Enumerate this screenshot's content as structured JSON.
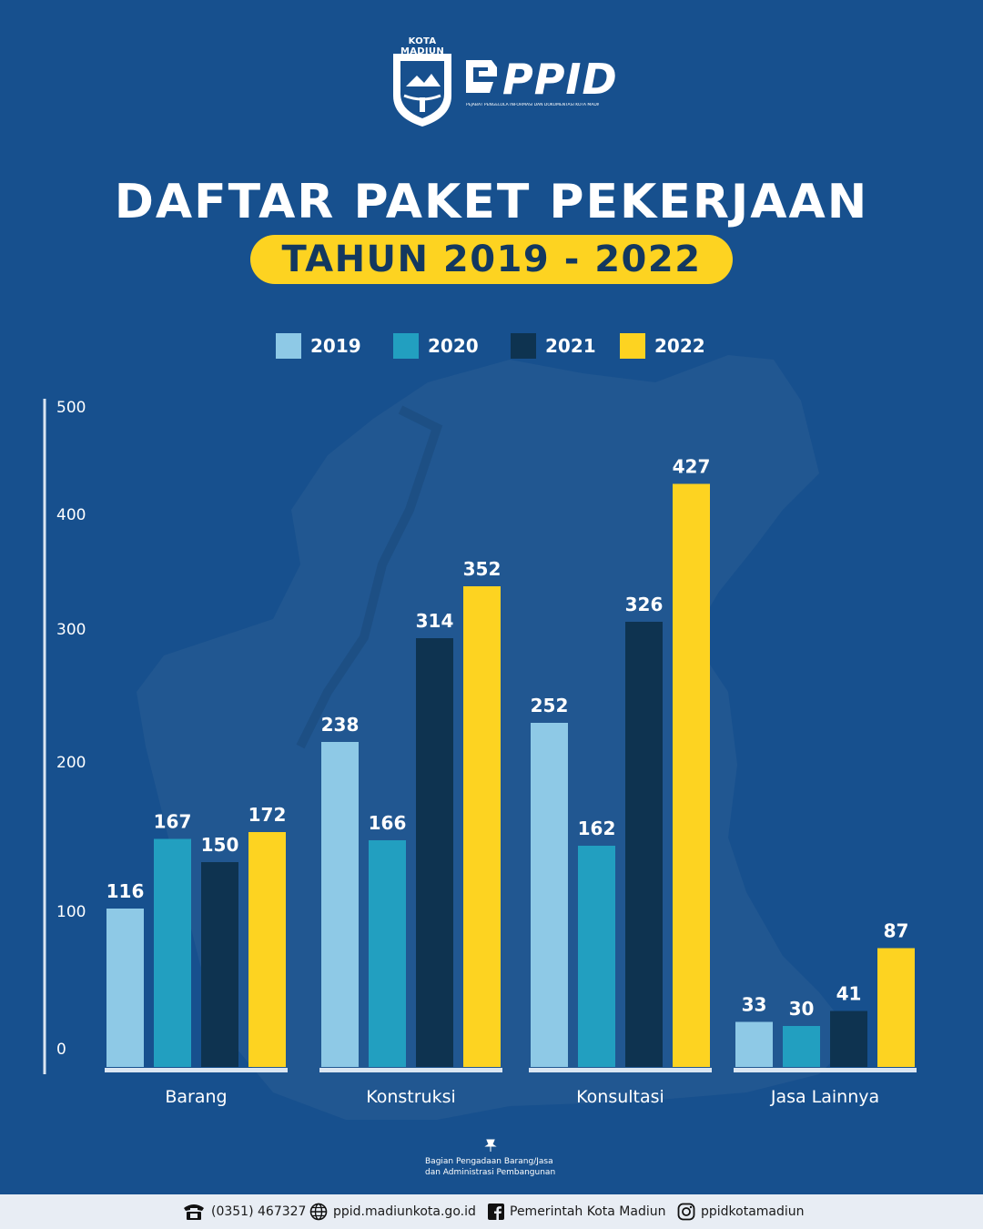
{
  "header": {
    "org_name": "KOTA MADIUN",
    "brand": "PPID",
    "brand_subtitle": "PEJABAT PENGELOLA INFORMASI DAN DOKUMENTASI KOTA MADIUN"
  },
  "title": "DAFTAR PAKET PEKERJAAN",
  "subtitle": "TAHUN 2019 - 2022",
  "colors": {
    "background": "#17508e",
    "series_2019": "#8ec9e6",
    "series_2020": "#229fc0",
    "series_2021": "#0e3350",
    "series_2022": "#fdd321",
    "pill": "#fdd321"
  },
  "chart_data": {
    "type": "bar",
    "categories": [
      "Barang",
      "Konstruksi",
      "Konsultasi",
      "Jasa Lainnya"
    ],
    "series": [
      {
        "name": "2019",
        "values": [
          116,
          238,
          252,
          33
        ]
      },
      {
        "name": "2020",
        "values": [
          167,
          166,
          162,
          30
        ]
      },
      {
        "name": "2021",
        "values": [
          150,
          314,
          326,
          41
        ]
      },
      {
        "name": "2022",
        "values": [
          172,
          352,
          427,
          87
        ]
      }
    ],
    "yticks": [
      "0",
      "100",
      "200",
      "300",
      "400",
      "500"
    ],
    "ylim": [
      0,
      500
    ],
    "legend_position": "top",
    "grid": false
  },
  "source_note": {
    "line1": "Bagian Pengadaan Barang/Jasa",
    "line2": "dan Administrasi Pembangunan"
  },
  "footer": {
    "phone": "(0351) 467327",
    "website": "ppid.madiunkota.go.id",
    "facebook": "Pemerintah Kota Madiun",
    "instagram": "ppidkotamadiun"
  }
}
